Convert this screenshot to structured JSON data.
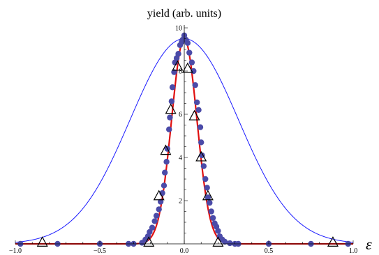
{
  "chart_data": {
    "type": "scatter",
    "title": "",
    "ylabel": "yield (arb. units)",
    "xlabel": "ε",
    "xlim": [
      -1.0,
      1.0
    ],
    "ylim": [
      0,
      10
    ],
    "x_ticks": [
      "-1.0",
      "-0.5",
      "0.0",
      "0.5",
      "1.0"
    ],
    "x_tick_values": [
      -1.0,
      -0.5,
      0.0,
      0.5,
      1.0
    ],
    "y_ticks": [
      "2",
      "4",
      "6",
      "8",
      "10"
    ],
    "y_tick_values": [
      2,
      4,
      6,
      8,
      10
    ],
    "grid": false,
    "colors": {
      "dots": "#4b4ba8",
      "narrow_curve": "#e01010",
      "wide_curve": "#1a1aff",
      "triangles": "#000000"
    },
    "series": [
      {
        "kind": "scatter-dots",
        "points": [
          [
            -0.97,
            0.0
          ],
          [
            -0.75,
            0.0
          ],
          [
            -0.5,
            0.0
          ],
          [
            -0.33,
            0.0
          ],
          [
            -0.3,
            0.0
          ],
          [
            -0.25,
            0.05
          ],
          [
            -0.23,
            0.2
          ],
          [
            -0.215,
            0.35
          ],
          [
            -0.205,
            0.55
          ],
          [
            -0.19,
            0.75
          ],
          [
            -0.175,
            1.05
          ],
          [
            -0.165,
            1.3
          ],
          [
            -0.15,
            1.6
          ],
          [
            -0.14,
            1.95
          ],
          [
            -0.13,
            2.35
          ],
          [
            -0.12,
            2.7
          ],
          [
            -0.115,
            3.3
          ],
          [
            -0.105,
            3.8
          ],
          [
            -0.1,
            4.4
          ],
          [
            -0.09,
            5.3
          ],
          [
            -0.085,
            5.85
          ],
          [
            -0.075,
            6.6
          ],
          [
            -0.07,
            7.25
          ],
          [
            -0.06,
            7.95
          ],
          [
            -0.055,
            8.4
          ],
          [
            -0.045,
            8.6
          ],
          [
            -0.035,
            8.8
          ],
          [
            -0.025,
            9.2
          ],
          [
            -0.015,
            9.35
          ],
          [
            -0.01,
            9.45
          ],
          [
            0.0,
            9.65
          ],
          [
            0.01,
            9.45
          ],
          [
            0.02,
            9.3
          ],
          [
            0.03,
            8.85
          ],
          [
            0.045,
            8.4
          ],
          [
            0.055,
            8.0
          ],
          [
            0.065,
            7.35
          ],
          [
            0.075,
            6.55
          ],
          [
            0.085,
            6.2
          ],
          [
            0.095,
            5.4
          ],
          [
            0.1,
            4.7
          ],
          [
            0.105,
            4.1
          ],
          [
            0.115,
            3.6
          ],
          [
            0.125,
            3.0
          ],
          [
            0.135,
            2.6
          ],
          [
            0.14,
            2.15
          ],
          [
            0.15,
            1.9
          ],
          [
            0.16,
            1.5
          ],
          [
            0.17,
            1.2
          ],
          [
            0.18,
            0.95
          ],
          [
            0.19,
            0.8
          ],
          [
            0.2,
            0.6
          ],
          [
            0.21,
            0.35
          ],
          [
            0.225,
            0.2
          ],
          [
            0.24,
            0.1
          ],
          [
            0.27,
            0.03
          ],
          [
            0.3,
            0.0
          ],
          [
            0.32,
            0.0
          ],
          [
            0.5,
            0.0
          ],
          [
            0.75,
            0.0
          ],
          [
            0.97,
            0.0
          ]
        ]
      },
      {
        "kind": "triangles",
        "points": [
          [
            -0.84,
            0.05
          ],
          [
            -0.21,
            0.05
          ],
          [
            -0.15,
            2.2
          ],
          [
            -0.11,
            4.3
          ],
          [
            -0.08,
            6.2
          ],
          [
            -0.04,
            8.2
          ],
          [
            0.02,
            8.1
          ],
          [
            0.06,
            5.9
          ],
          [
            0.1,
            4.0
          ],
          [
            0.14,
            2.2
          ],
          [
            0.2,
            0.05
          ],
          [
            0.88,
            0.05
          ]
        ]
      },
      {
        "kind": "gaussian-curve",
        "role": "narrow",
        "amplitude": 9.5,
        "center": 0.0,
        "sigma": 0.075
      },
      {
        "kind": "gaussian-curve",
        "role": "wide",
        "amplitude": 9.5,
        "center": 0.0,
        "sigma": 0.32
      }
    ]
  }
}
